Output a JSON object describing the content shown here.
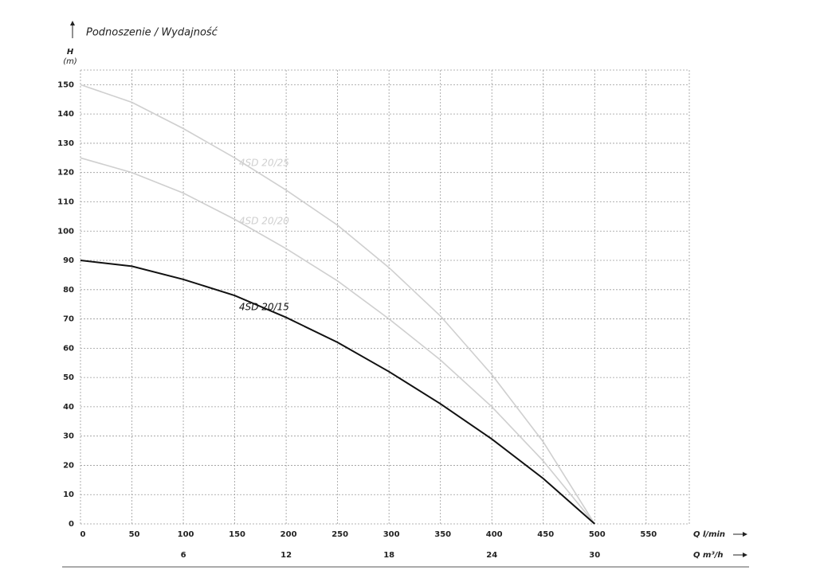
{
  "chart_data": {
    "type": "line",
    "title": "Podnoszenie / Wydajność",
    "y_label": "H",
    "y_unit": "(m)",
    "x_label": "Q l/min",
    "x2_label": "Q m³/h",
    "x": [
      0,
      50,
      100,
      150,
      200,
      250,
      300,
      350,
      400,
      450,
      500
    ],
    "series": [
      {
        "name": "4SD 20/25",
        "color": "#cfcfcf",
        "values": [
          150,
          144,
          135,
          125,
          114,
          102,
          87.5,
          71,
          51,
          28,
          0
        ]
      },
      {
        "name": "4SD 20/20",
        "color": "#cfcfcf",
        "values": [
          125,
          120,
          113,
          104,
          94,
          83,
          70,
          56,
          40,
          21.5,
          0
        ]
      },
      {
        "name": "4SD 20/15",
        "color": "#111111",
        "values": [
          90,
          88,
          83.5,
          78,
          70.5,
          62,
          52,
          41,
          29,
          15.5,
          0
        ]
      }
    ],
    "xlim": [
      0,
      592
    ],
    "ylim": [
      0,
      155
    ],
    "xticks": [
      0,
      50,
      100,
      150,
      200,
      250,
      300,
      350,
      400,
      450,
      500,
      550
    ],
    "yticks": [
      0,
      10,
      20,
      30,
      40,
      50,
      60,
      70,
      80,
      90,
      100,
      110,
      120,
      130,
      140,
      150
    ],
    "x2lim": [
      0,
      35.52
    ],
    "x2ticks": [
      6,
      12,
      18,
      24,
      30
    ],
    "grid": true
  }
}
